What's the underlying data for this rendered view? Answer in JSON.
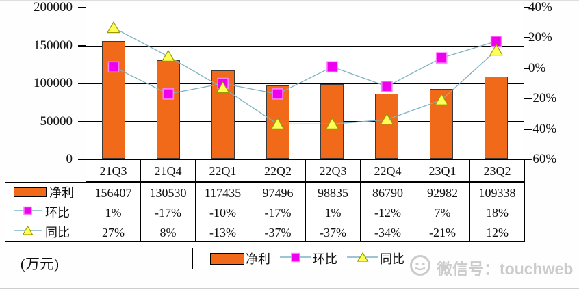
{
  "chart_data": {
    "type": "bar",
    "subtype": "bar-with-two-percentage-lines",
    "title": "",
    "categories": [
      "21Q3",
      "21Q4",
      "22Q1",
      "22Q2",
      "22Q3",
      "22Q4",
      "23Q1",
      "23Q2"
    ],
    "series": [
      {
        "name": "净利",
        "type": "bar",
        "axis": "left",
        "color": "#f06a1a",
        "values": [
          156407,
          130530,
          117435,
          97496,
          98835,
          86790,
          92982,
          109338
        ],
        "labels": [
          "156407",
          "130530",
          "117435",
          "97496",
          "98835",
          "86790",
          "92982",
          "109338"
        ]
      },
      {
        "name": "环比",
        "type": "line",
        "axis": "right",
        "marker": "square",
        "color": "#ee00ee",
        "marker_border": "#ff7cff",
        "line_color": "#7fb2c4",
        "values": [
          1,
          -17,
          -10,
          -17,
          1,
          -12,
          7,
          18
        ],
        "labels": [
          "1%",
          "-17%",
          "-10%",
          "-17%",
          "1%",
          "-12%",
          "7%",
          "18%"
        ]
      },
      {
        "name": "同比",
        "type": "line",
        "axis": "right",
        "marker": "triangle",
        "color": "#ffff55",
        "marker_border": "#9a9a00",
        "line_color": "#7fb2c4",
        "values": [
          27,
          8,
          -13,
          -37,
          -37,
          -34,
          -21,
          12
        ],
        "labels": [
          "27%",
          "8%",
          "-13%",
          "-37%",
          "-37%",
          "-34%",
          "-21%",
          "12%"
        ]
      }
    ],
    "left_axis": {
      "min": 0,
      "max": 200000,
      "ticks": [
        "200000",
        "150000",
        "100000",
        "50000",
        "0"
      ]
    },
    "right_axis": {
      "min": -60,
      "max": 40,
      "ticks": [
        "40%",
        "20%",
        "0%",
        "-20%",
        "-40%",
        "-60%"
      ]
    },
    "unit_label": "(万元)",
    "legend_position": "bottom",
    "grid": "horizontal-only"
  },
  "watermark": {
    "text": "微信号：touchweb",
    "icon": "wechat-logo"
  }
}
